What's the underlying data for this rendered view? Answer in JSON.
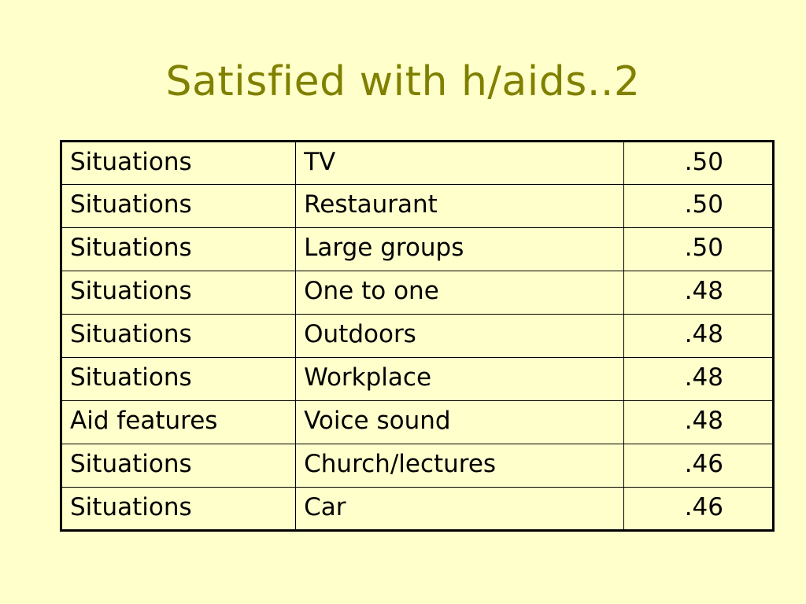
{
  "colors": {
    "background": "#FFFFCC",
    "title": "#808000",
    "text": "#000000",
    "border": "#000000"
  },
  "slide": {
    "title": "Satisfied with h/aids..2"
  },
  "table": {
    "rows": [
      {
        "category": "Situations",
        "item": "TV",
        "value": ".50"
      },
      {
        "category": "Situations",
        "item": "Restaurant",
        "value": ".50"
      },
      {
        "category": "Situations",
        "item": "Large groups",
        "value": ".50"
      },
      {
        "category": "Situations",
        "item": "One to one",
        "value": ".48"
      },
      {
        "category": "Situations",
        "item": "Outdoors",
        "value": ".48"
      },
      {
        "category": "Situations",
        "item": "Workplace",
        "value": ".48"
      },
      {
        "category": "Aid features",
        "item": "Voice sound",
        "value": ".48"
      },
      {
        "category": "Situations",
        "item": "Church/lectures",
        "value": ".46"
      },
      {
        "category": "Situations",
        "item": "Car",
        "value": ".46"
      }
    ]
  }
}
